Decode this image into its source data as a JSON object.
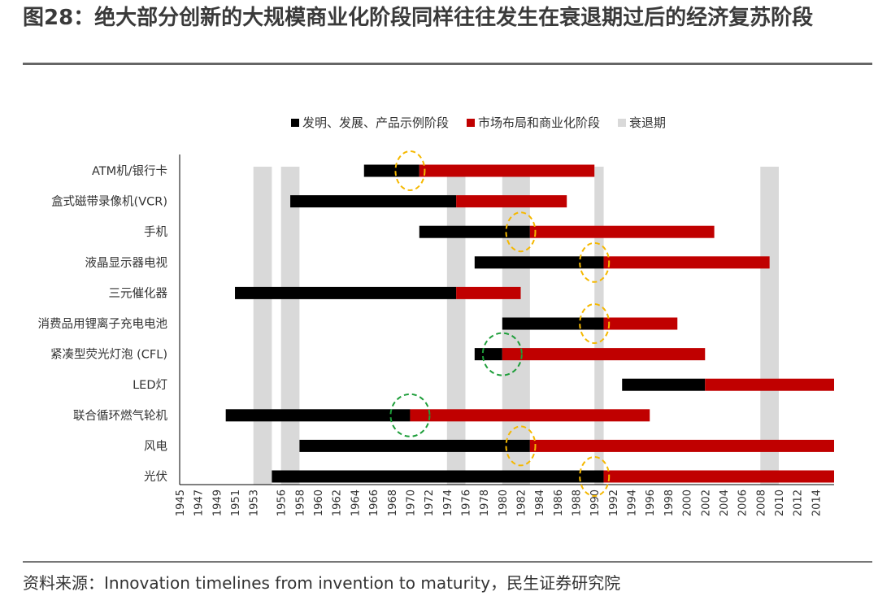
{
  "title": "图28：绝大部分创新的大规模商业化阶段同样往往发生在衰退期过后的经济复苏阶段",
  "source": "资料来源：Innovation timelines from invention to maturity，民生证券研究院",
  "colors": {
    "invention": "#000000",
    "commercial": "#c00000",
    "recession": "#d9d9d9",
    "circle_orange": "#f5b800",
    "circle_green": "#1e9e3a",
    "axis": "#000000"
  },
  "chart_data": {
    "type": "gantt",
    "legend": [
      {
        "key": "invention",
        "label": "发明、发展、产品示例阶段"
      },
      {
        "key": "commercial",
        "label": "市场布局和商业化阶段"
      },
      {
        "key": "recession",
        "label": "衰退期"
      }
    ],
    "xlim": [
      1945,
      2016
    ],
    "x_ticks": [
      1945,
      1947,
      1949,
      1951,
      1953,
      1956,
      1958,
      1960,
      1962,
      1964,
      1966,
      1968,
      1970,
      1972,
      1974,
      1976,
      1978,
      1980,
      1982,
      1984,
      1986,
      1988,
      1990,
      1992,
      1994,
      1996,
      1998,
      2000,
      2002,
      2004,
      2006,
      2008,
      2010,
      2012,
      2014
    ],
    "recessions": [
      [
        1953,
        1955
      ],
      [
        1956,
        1958
      ],
      [
        1974,
        1976
      ],
      [
        1980,
        1983
      ],
      [
        1990,
        1991
      ],
      [
        2008,
        2010
      ]
    ],
    "rows": [
      {
        "label": "ATM机/银行卡",
        "start": 1965,
        "mid": 1971,
        "end": 1990,
        "circle": {
          "year": 1970,
          "color": "orange"
        }
      },
      {
        "label": "盒式磁带录像机(VCR)",
        "start": 1957,
        "mid": 1975,
        "end": 1987,
        "circle": null
      },
      {
        "label": "手机",
        "start": 1971,
        "mid": 1983,
        "end": 2003,
        "circle": {
          "year": 1982,
          "color": "orange"
        }
      },
      {
        "label": "液晶显示器电视",
        "start": 1977,
        "mid": 1991,
        "end": 2009,
        "circle": {
          "year": 1990,
          "color": "orange"
        }
      },
      {
        "label": "三元催化器",
        "start": 1951,
        "mid": 1975,
        "end": 1982,
        "circle": null
      },
      {
        "label": "消费品用锂离子充电电池",
        "start": 1980,
        "mid": 1991,
        "end": 1999,
        "circle": {
          "year": 1990,
          "color": "orange"
        }
      },
      {
        "label": "紧凑型荧光灯泡 (CFL)",
        "start": 1977,
        "mid": 1980,
        "end": 2002,
        "circle": {
          "year": 1980,
          "color": "green"
        }
      },
      {
        "label": "LED灯",
        "start": 1993,
        "mid": 2002,
        "end": 2016,
        "circle": null
      },
      {
        "label": "联合循环燃气轮机",
        "start": 1950,
        "mid": 1970,
        "end": 1996,
        "circle": {
          "year": 1970,
          "color": "green"
        }
      },
      {
        "label": "风电",
        "start": 1958,
        "mid": 1983,
        "end": 2016,
        "circle": {
          "year": 1982,
          "color": "orange"
        }
      },
      {
        "label": "光伏",
        "start": 1955,
        "mid": 1991,
        "end": 2016,
        "circle": {
          "year": 1990,
          "color": "orange"
        }
      }
    ]
  }
}
